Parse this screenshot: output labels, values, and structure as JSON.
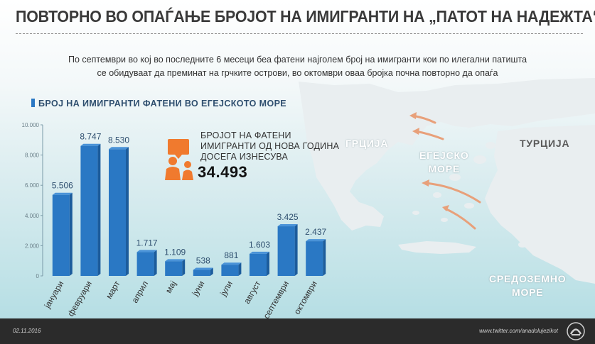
{
  "title": "ПОВТОРНО ВО ОПАЃАЊЕ БРОЈОТ НА ИМИГРАНТИ НА „ПАТОТ НА НАДЕЖТА“",
  "subtitle": {
    "line1": "По септември во кој во последните 6 месеци беа фатени најголем број на имигранти кои по илегални патишта",
    "line2": "се обидуваат да преминат на грчките острови, во октомври оваа бројка почна повторно да опаѓа"
  },
  "callout": {
    "line1": "БРОЈОТ НА ФАТЕНИ",
    "line2": "ИМИГРАНТИ ОД НОВА ГОДИНА",
    "line3": "ДОСЕГА ИЗНЕСУВА",
    "value": "34.493",
    "icon": "family-icon"
  },
  "map": {
    "regions": {
      "greece": "ГРЦИЈА",
      "turkey": "ТУРЦИЈА",
      "aegean_line1": "ЕГЕЈСКО",
      "aegean_line2": "МОРЕ",
      "med_line1": "СРЕДОЗЕМНО",
      "med_line2": "МОРЕ"
    },
    "arrow_color": "#e8a07a"
  },
  "footer": {
    "date": "02.11.2016",
    "source": "www.twitter.com/anadolujezikot",
    "logo": "agency-logo-icon"
  },
  "colors": {
    "bar": "#2a78c4",
    "bar_dark": "#1c5c9c",
    "accent": "#f07a2e",
    "footer_bg": "#2b2b2b"
  },
  "chart_data": {
    "type": "bar",
    "legend": "БРОЈ НА ИМИГРАНТИ ФАТЕНИ ВО ЕГЕЈСКОТО МОРЕ",
    "categories": [
      "јануари",
      "февруари",
      "март",
      "април",
      "мај",
      "јуни",
      "јули",
      "август",
      "септември",
      "октомври"
    ],
    "values": [
      5506,
      8747,
      8530,
      1717,
      1109,
      538,
      881,
      1603,
      3425,
      2437
    ],
    "value_labels": [
      "5.506",
      "8.747",
      "8.530",
      "1.717",
      "1.109",
      "538",
      "881",
      "1.603",
      "3.425",
      "2.437"
    ],
    "yticks": [
      0,
      2000,
      4000,
      6000,
      8000,
      10000
    ],
    "ytick_labels": [
      "0",
      "2.000",
      "4.000",
      "6.000",
      "8.000",
      "10.000"
    ],
    "ylim": [
      0,
      10000
    ],
    "grid": false,
    "legend_position": "top-left"
  }
}
